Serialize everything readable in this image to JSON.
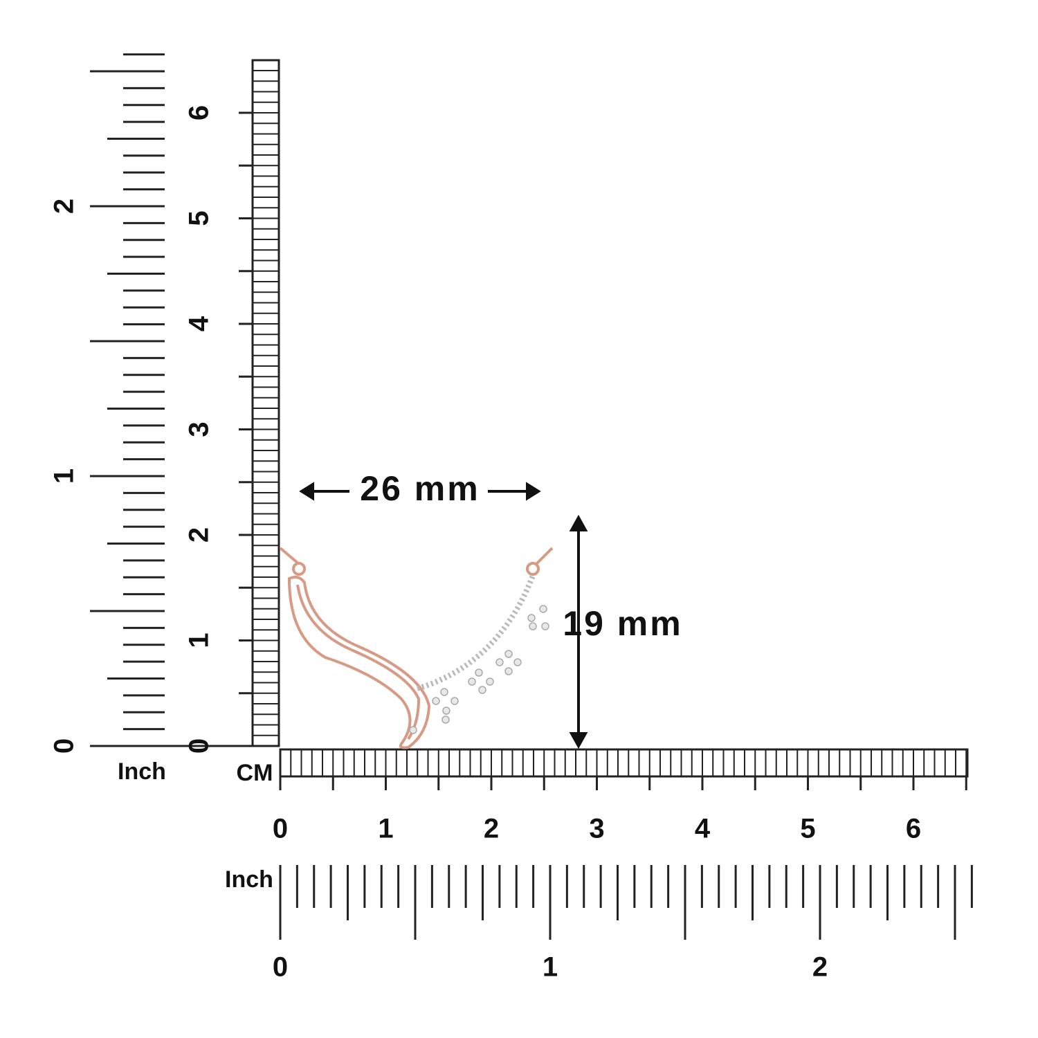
{
  "vertical_ruler": {
    "inch_labels": [
      0,
      1,
      2
    ],
    "inch_unit": "Inch",
    "cm_labels": [
      0,
      1,
      2,
      3,
      4,
      5,
      6
    ]
  },
  "horizontal_ruler": {
    "cm_unit": "CM",
    "cm_labels": [
      0,
      1,
      2,
      3,
      4,
      5,
      6
    ],
    "inch_unit": "Inch",
    "inch_labels": [
      0,
      1,
      2
    ]
  },
  "dimensions": {
    "width": "26 mm",
    "height": "19 mm"
  }
}
